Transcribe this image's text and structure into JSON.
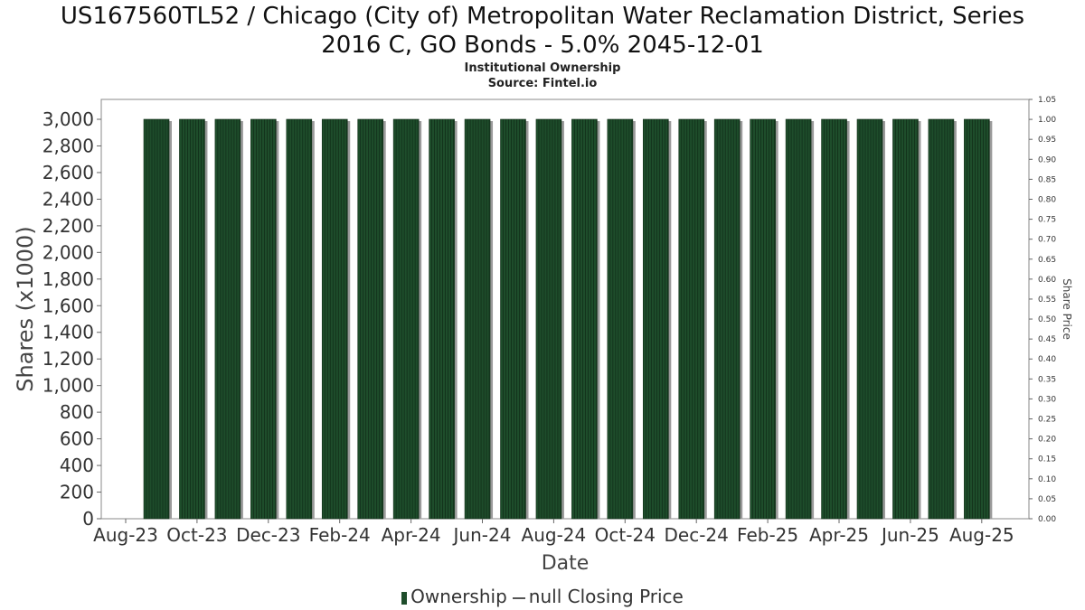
{
  "title_line1": "US167560TL52 / Chicago (City of) Metropolitan Water Reclamation District, Series",
  "title_line2": "2016 C, GO Bonds - 5.0% 2045-12-01",
  "subtitle": "Institutional Ownership",
  "source": "Source: Fintel.io",
  "legend": {
    "ownership": "Ownership",
    "price": "null Closing Price"
  },
  "colors": {
    "bar": "#1e4d2b",
    "bar_shadow": "#9a9a9a",
    "frame": "#888888",
    "grid": "#e6e6e6"
  },
  "chart_data": {
    "type": "bar",
    "xlabel": "Date",
    "ylabel": "Shares (x1000)",
    "y2label": "Share Price",
    "ylim": [
      0,
      3000
    ],
    "y2lim": [
      0,
      1.05
    ],
    "yticks": [
      "0",
      "200",
      "400",
      "600",
      "800",
      "1,000",
      "1,200",
      "1,400",
      "1,600",
      "1,800",
      "2,000",
      "2,200",
      "2,400",
      "2,600",
      "2,800",
      "3,000"
    ],
    "y2ticks": [
      "0.00",
      "0.05",
      "0.10",
      "0.15",
      "0.20",
      "0.25",
      "0.30",
      "0.35",
      "0.40",
      "0.45",
      "0.50",
      "0.55",
      "0.60",
      "0.65",
      "0.70",
      "0.75",
      "0.80",
      "0.85",
      "0.90",
      "0.95",
      "1.00",
      "1.05"
    ],
    "xticks": [
      "Aug-23",
      "Oct-23",
      "Dec-23",
      "Feb-24",
      "Apr-24",
      "Jun-24",
      "Aug-24",
      "Oct-24",
      "Dec-24",
      "Feb-25",
      "Apr-25",
      "Jun-25",
      "Aug-25"
    ],
    "series": [
      {
        "name": "Ownership",
        "values": [
          3000,
          3000,
          3000,
          3000,
          3000,
          3000,
          3000,
          3000,
          3000,
          3000,
          3000,
          3000,
          3000,
          3000,
          3000,
          3000,
          3000,
          3000,
          3000,
          3000,
          3000,
          3000,
          3000,
          3000
        ]
      }
    ],
    "grid": false,
    "legend_position": "bottom"
  }
}
